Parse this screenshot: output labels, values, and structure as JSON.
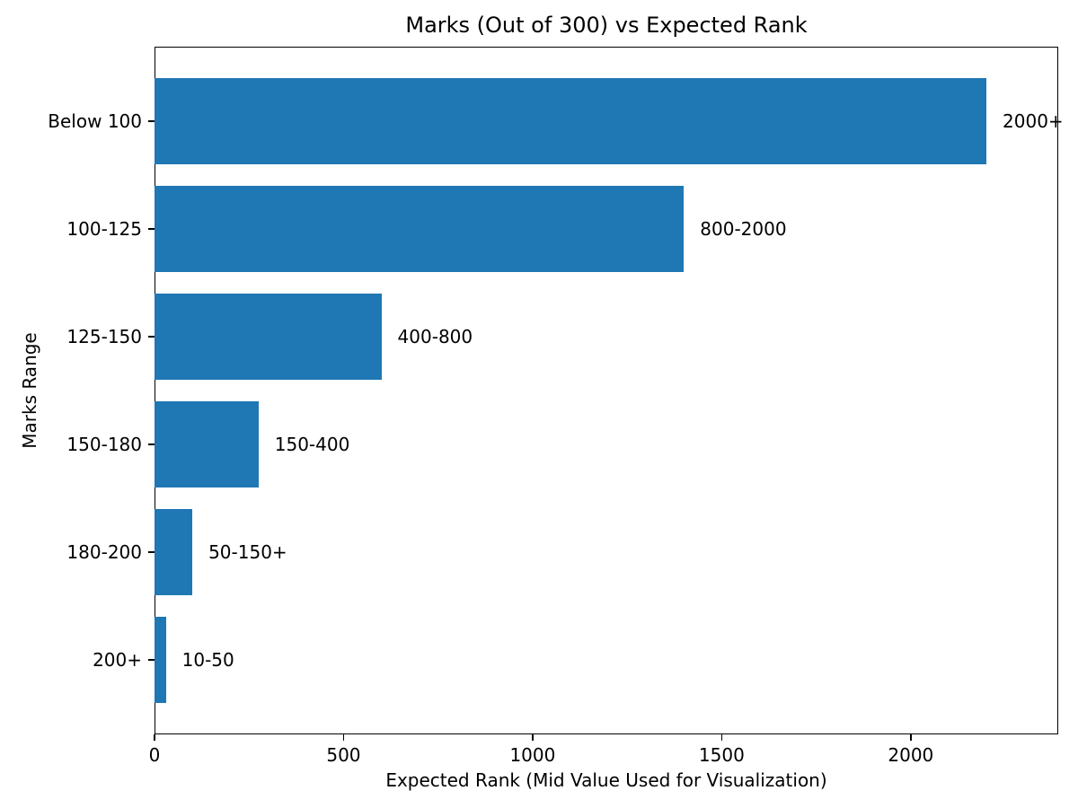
{
  "chart_data": {
    "type": "bar",
    "orientation": "horizontal",
    "title": "Marks (Out of 300) vs Expected Rank",
    "xlabel": "Expected Rank (Mid Value Used for Visualization)",
    "ylabel": "Marks Range",
    "categories": [
      "Below 100",
      "100-125",
      "125-150",
      "150-180",
      "180-200",
      "200+"
    ],
    "values": [
      2200,
      1400,
      600,
      275,
      100,
      30
    ],
    "bar_labels": [
      "2000+",
      "800-2000",
      "400-800",
      "150-400",
      "50-150+",
      "10-50"
    ],
    "xticks": [
      0,
      500,
      1000,
      1500,
      2000
    ],
    "xtick_labels": [
      "0",
      "500",
      "1000",
      "1500",
      "2000"
    ],
    "xlim": [
      0,
      2390
    ],
    "grid": false,
    "legend_position": "none",
    "bar_color": "#1f77b4",
    "text_color": "#000000",
    "background_color": "#ffffff"
  }
}
